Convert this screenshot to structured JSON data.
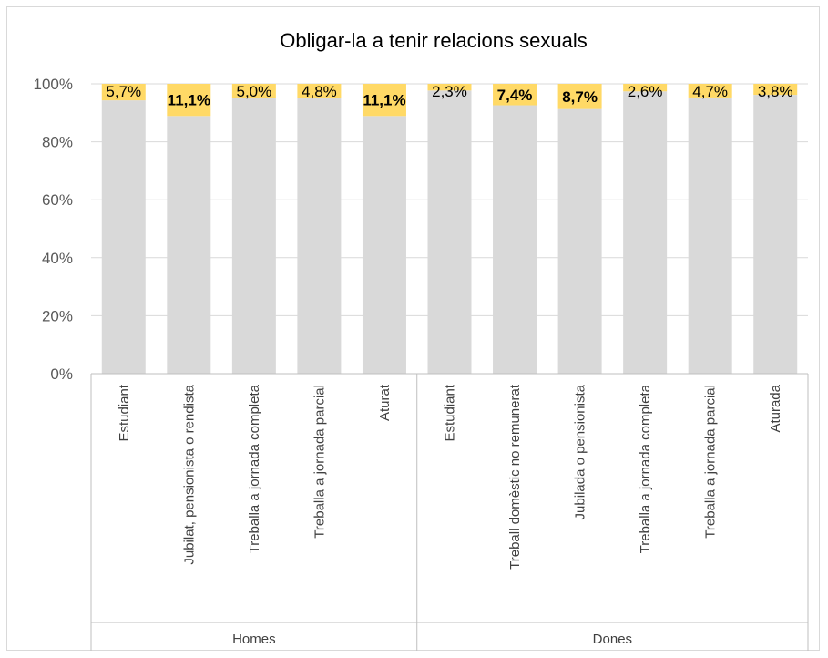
{
  "chart_data": {
    "type": "bar",
    "stacked": true,
    "title": "Obligar-la a tenir relacions sexuals",
    "ylim": [
      0,
      100
    ],
    "yticks": [
      "0%",
      "20%",
      "40%",
      "60%",
      "80%",
      "100%"
    ],
    "grid": true,
    "groups": [
      {
        "label": "Homes",
        "count": 5
      },
      {
        "label": "Dones",
        "count": 6
      }
    ],
    "categories": [
      "Estudiant",
      "Jubilat, pensionista o rendista",
      "Treballa a jornada completa",
      "Treballa a jornada parcial",
      "Aturat",
      "Estudiant",
      "Treball domèstic no remunerat",
      "Jubilada o pensionista",
      "Treballa a jornada completa",
      "Treballa a jornada parcial",
      "Aturada"
    ],
    "series": [
      {
        "values": [
          94.3,
          88.9,
          95.0,
          95.2,
          88.9,
          97.7,
          92.6,
          91.3,
          97.4,
          95.3,
          96.2
        ],
        "color": "#d9d9d9"
      },
      {
        "values": [
          5.7,
          11.1,
          5.0,
          4.8,
          11.1,
          2.3,
          7.4,
          8.7,
          2.6,
          4.7,
          3.8
        ],
        "color": "#ffd966"
      }
    ],
    "data_labels": [
      "5,7%",
      "11,1%",
      "5,0%",
      "4,8%",
      "11,1%",
      "2,3%",
      "7,4%",
      "8,7%",
      "2,6%",
      "4,7%",
      "3,8%"
    ],
    "bold_labels": [
      false,
      true,
      false,
      false,
      true,
      false,
      true,
      true,
      false,
      false,
      false
    ]
  }
}
